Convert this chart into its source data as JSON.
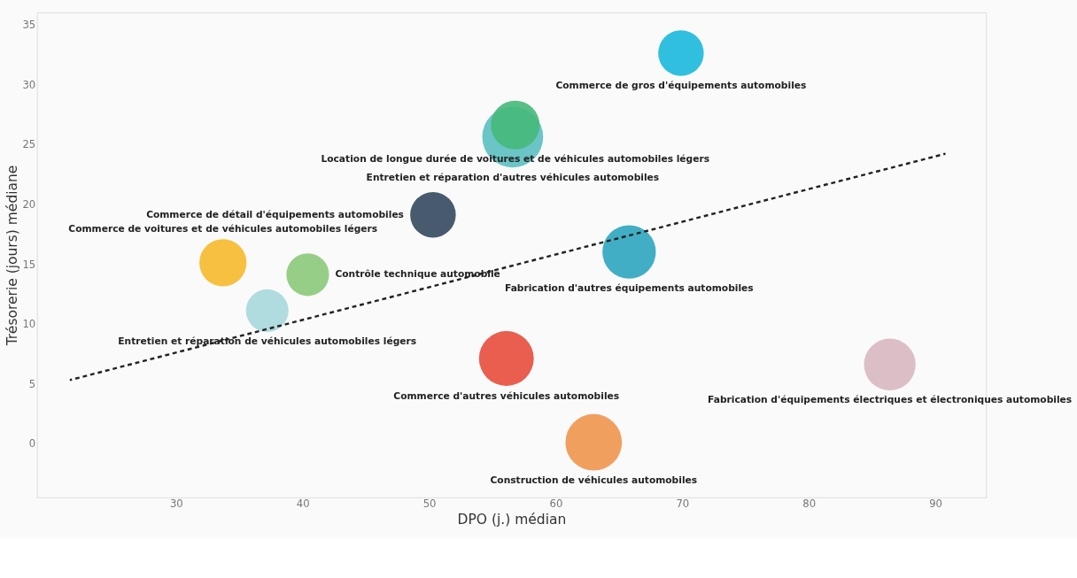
{
  "chart_data": {
    "type": "bubble",
    "xlabel": "DPO (j.) médian",
    "ylabel": "Trésorerie (jours) médiane",
    "xlim": [
      19,
      94
    ],
    "ylim": [
      -4.5,
      36
    ],
    "xticks": [
      30,
      40,
      50,
      60,
      70,
      80,
      90
    ],
    "yticks": [
      0,
      5,
      10,
      15,
      20,
      25,
      30,
      35
    ],
    "grid": false,
    "series": [
      {
        "name": "Commerce de gros d'équipements automobiles",
        "color": "#1ab8dc",
        "x": [
          69.9
        ],
        "values": [
          32.6
        ],
        "sizes": [
          0.56
        ]
      },
      {
        "name": "Entretien et réparation d'autres véhicules automobiles",
        "color": "#5bbfc0",
        "x": [
          56.6
        ],
        "values": [
          25.6
        ],
        "sizes": [
          1
        ]
      },
      {
        "name": "Location de longue durée de voitures et de véhicules automobiles légers",
        "color": "#46b87a",
        "x": [
          56.8
        ],
        "values": [
          26.6
        ],
        "sizes": [
          0.64
        ]
      },
      {
        "name": "Commerce de détail d'équipements automobiles",
        "color": "#34495e",
        "x": [
          50.3
        ],
        "values": [
          19.1
        ],
        "sizes": [
          0.56
        ]
      },
      {
        "name": "Commerce de voitures et de véhicules automobiles légers",
        "color": "#f6b92b",
        "x": [
          33.7
        ],
        "values": [
          15.1
        ],
        "sizes": [
          0.6
        ]
      },
      {
        "name": "Contrôle technique automobile",
        "color": "#8cc97a",
        "x": [
          40.4
        ],
        "values": [
          14.1
        ],
        "sizes": [
          0.49
        ]
      },
      {
        "name": "Entretien et réparation de véhicules automobiles légers",
        "color": "#a8d8dc",
        "x": [
          37.2
        ],
        "values": [
          11.1
        ],
        "sizes": [
          0.49
        ]
      },
      {
        "name": "Fabrication d'autres équipements automobiles",
        "color": "#2ea5c0",
        "x": [
          65.8
        ],
        "values": [
          16.0
        ],
        "sizes": [
          0.77
        ]
      },
      {
        "name": "Commerce d'autres véhicules automobiles",
        "color": "#e74c3c",
        "x": [
          56.1
        ],
        "values": [
          7.1
        ],
        "sizes": [
          0.81
        ]
      },
      {
        "name": "Fabrication d'équipements électriques et électroniques automobiles",
        "color": "#d8b8c0",
        "x": [
          86.4
        ],
        "values": [
          6.6
        ],
        "sizes": [
          0.72
        ]
      },
      {
        "name": "Construction de véhicules automobiles",
        "color": "#f0954c",
        "x": [
          63.0
        ],
        "values": [
          0.1
        ],
        "sizes": [
          0.86
        ]
      },
      {
        "type": "line",
        "color": "#222222",
        "line_style": "dashed",
        "x": [
          21.6,
          90.8
        ],
        "values": [
          5.3,
          24.2
        ]
      }
    ]
  }
}
